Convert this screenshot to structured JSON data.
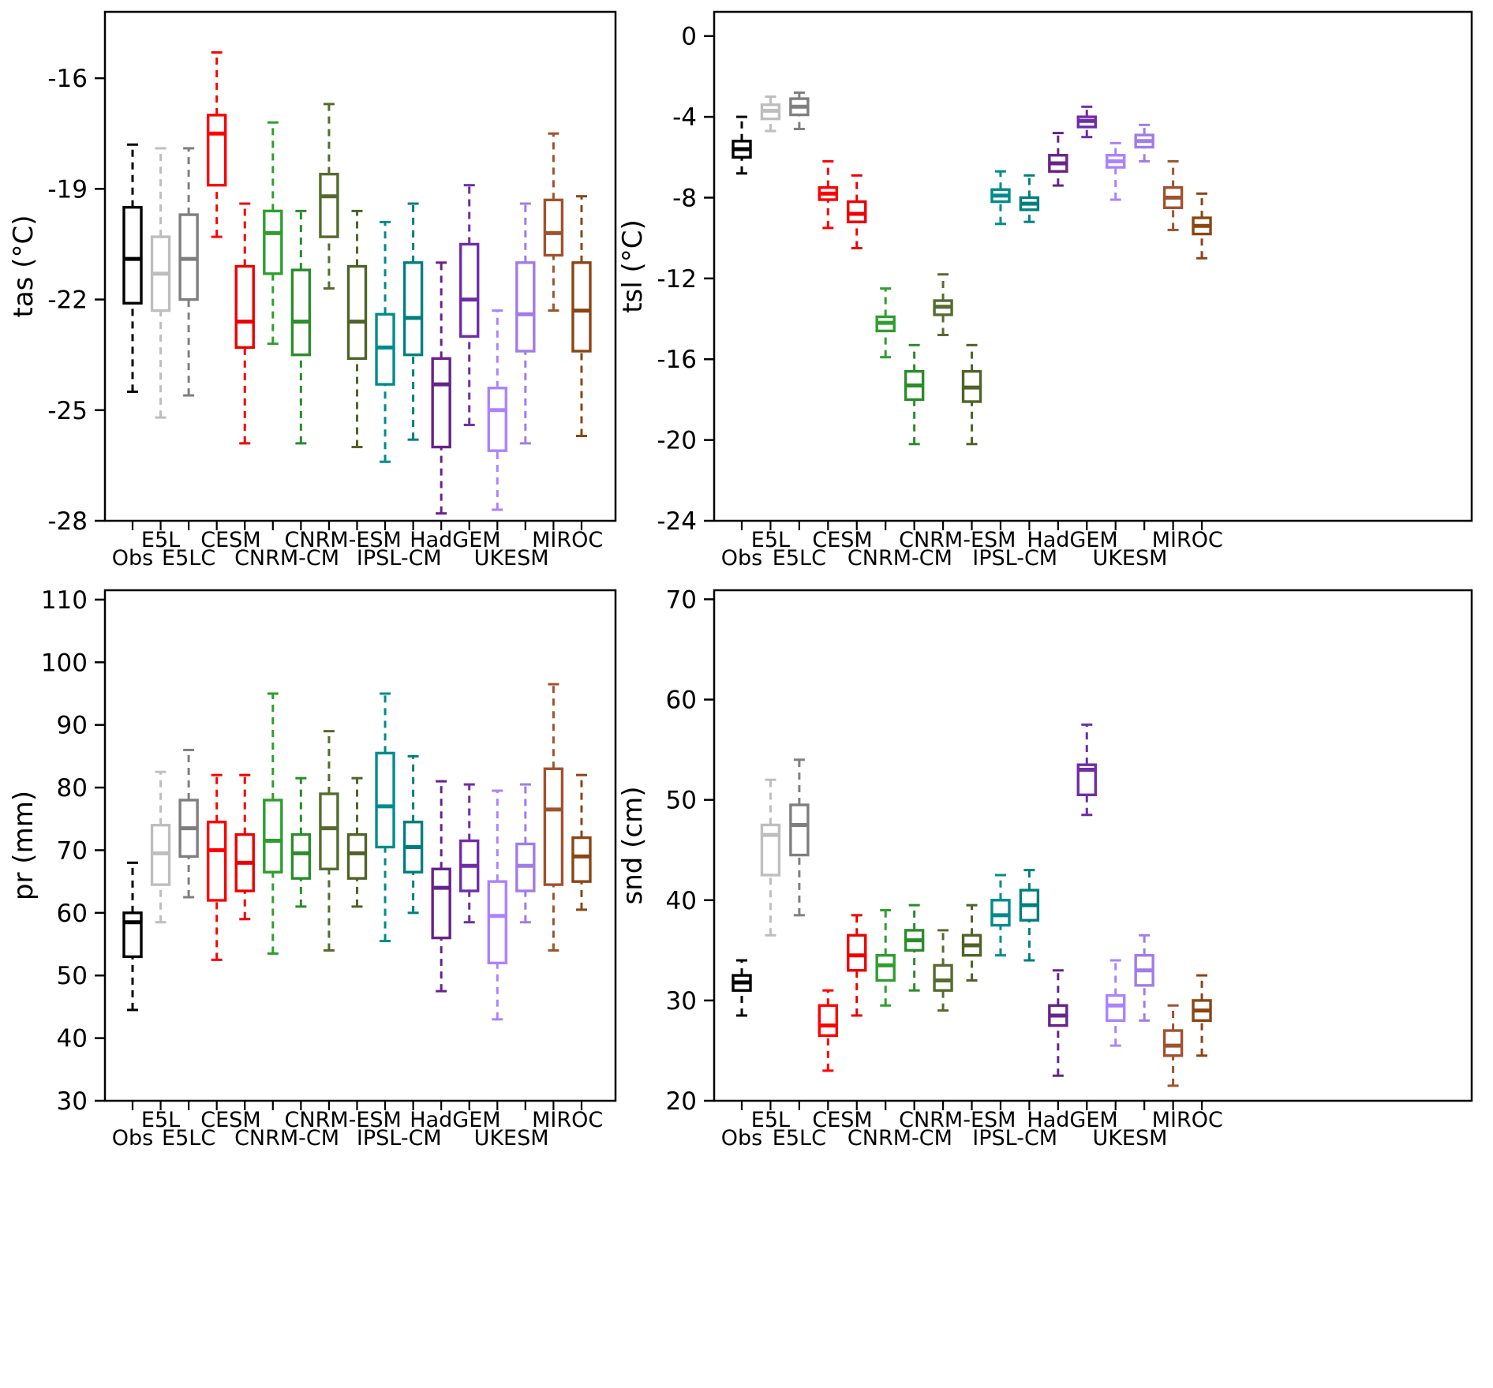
{
  "figure": {
    "description": "Four-panel boxplot comparison of observations and climate models",
    "background": "#ffffff",
    "frame_color": "#000000"
  },
  "chart_data": [
    {
      "type": "box",
      "id": "tas",
      "ylabel": "tas (°C)",
      "yticks": [
        -16,
        -19,
        -22,
        -25,
        -28
      ],
      "ylim": [
        -28,
        -14.2
      ],
      "grid": false,
      "legend": "none",
      "groups": [
        {
          "label": "Obs",
          "first": 0,
          "last": 0,
          "row": "low"
        },
        {
          "label": "E5L",
          "first": 1,
          "last": 1,
          "row": "high"
        },
        {
          "label": "E5LC",
          "first": 2,
          "last": 2,
          "row": "low"
        },
        {
          "label": "CESM",
          "first": 3,
          "last": 4,
          "row": "high"
        },
        {
          "label": "CNRM-CM",
          "first": 5,
          "last": 6,
          "row": "low"
        },
        {
          "label": "CNRM-ESM",
          "first": 7,
          "last": 8,
          "row": "high"
        },
        {
          "label": "IPSL-CM",
          "first": 9,
          "last": 10,
          "row": "low"
        },
        {
          "label": "HadGEM",
          "first": 11,
          "last": 12,
          "row": "high"
        },
        {
          "label": "UKESM",
          "first": 13,
          "last": 14,
          "row": "low"
        },
        {
          "label": "MIROC",
          "first": 15,
          "last": 16,
          "row": "high"
        }
      ],
      "boxes": [
        {
          "group": "Obs",
          "color": "#000000",
          "whislo": -24.5,
          "q1": -22.1,
          "med": -20.9,
          "q3": -19.5,
          "whishi": -17.8
        },
        {
          "group": "E5L",
          "color": "#bebebe",
          "whislo": -25.2,
          "q1": -22.3,
          "med": -21.3,
          "q3": -20.3,
          "whishi": -17.9
        },
        {
          "group": "E5LC",
          "color": "#7f7f7f",
          "whislo": -24.6,
          "q1": -22.0,
          "med": -20.9,
          "q3": -19.7,
          "whishi": -17.9
        },
        {
          "group": "CESM-1",
          "color": "#ff0000",
          "whislo": -20.3,
          "q1": -18.9,
          "med": -17.5,
          "q3": -17.0,
          "whishi": -15.3
        },
        {
          "group": "CESM-2",
          "color": "#ee0000",
          "whislo": -25.9,
          "q1": -23.3,
          "med": -22.6,
          "q3": -21.1,
          "whishi": -19.4
        },
        {
          "group": "CNRM-CM-1",
          "color": "#2e9e2e",
          "whislo": -23.2,
          "q1": -21.3,
          "med": -20.2,
          "q3": -19.6,
          "whishi": -17.2
        },
        {
          "group": "CNRM-CM-2",
          "color": "#2a8c2a",
          "whislo": -25.9,
          "q1": -23.5,
          "med": -22.6,
          "q3": -21.2,
          "whishi": -19.6
        },
        {
          "group": "CNRM-ESM-1",
          "color": "#556b2f",
          "whislo": -21.7,
          "q1": -20.3,
          "med": -19.2,
          "q3": -18.6,
          "whishi": -16.7
        },
        {
          "group": "CNRM-ESM-2",
          "color": "#4f6328",
          "whislo": -26.0,
          "q1": -23.6,
          "med": -22.6,
          "q3": -21.1,
          "whishi": -19.6
        },
        {
          "group": "IPSL-CM-1",
          "color": "#008b8b",
          "whislo": -26.4,
          "q1": -24.3,
          "med": -23.3,
          "q3": -22.4,
          "whishi": -19.9
        },
        {
          "group": "IPSL-CM-2",
          "color": "#007f7f",
          "whislo": -25.8,
          "q1": -23.5,
          "med": -22.5,
          "q3": -21.0,
          "whishi": -19.4
        },
        {
          "group": "HadGEM-1",
          "color": "#68228b",
          "whislo": -27.8,
          "q1": -26.0,
          "med": -24.3,
          "q3": -23.6,
          "whishi": -21.0
        },
        {
          "group": "HadGEM-2",
          "color": "#6f2da8",
          "whislo": -25.4,
          "q1": -23.0,
          "med": -22.0,
          "q3": -20.5,
          "whishi": -18.9
        },
        {
          "group": "UKESM-1",
          "color": "#ab82ff",
          "whislo": -27.7,
          "q1": -26.1,
          "med": -25.0,
          "q3": -24.4,
          "whishi": -22.3
        },
        {
          "group": "UKESM-2",
          "color": "#a07ce8",
          "whislo": -25.9,
          "q1": -23.4,
          "med": -22.4,
          "q3": -21.0,
          "whishi": -19.4
        },
        {
          "group": "MIROC-1",
          "color": "#a0522d",
          "whislo": -22.3,
          "q1": -20.8,
          "med": -20.2,
          "q3": -19.3,
          "whishi": -17.5
        },
        {
          "group": "MIROC-2",
          "color": "#8b4513",
          "whislo": -25.7,
          "q1": -23.4,
          "med": -22.3,
          "q3": -21.0,
          "whishi": -19.2
        }
      ]
    },
    {
      "type": "box",
      "id": "tsl",
      "ylabel": "tsl (°C)",
      "yticks": [
        0,
        -4,
        -8,
        -12,
        -16,
        -20,
        -24
      ],
      "ylim": [
        -24,
        1.2
      ],
      "grid": false,
      "legend": "none",
      "groups": [
        {
          "label": "Obs",
          "first": 0,
          "last": 0,
          "row": "low"
        },
        {
          "label": "E5L",
          "first": 1,
          "last": 1,
          "row": "high"
        },
        {
          "label": "E5LC",
          "first": 2,
          "last": 2,
          "row": "low"
        },
        {
          "label": "CESM",
          "first": 3,
          "last": 4,
          "row": "high"
        },
        {
          "label": "CNRM-CM",
          "first": 5,
          "last": 6,
          "row": "low"
        },
        {
          "label": "CNRM-ESM",
          "first": 7,
          "last": 8,
          "row": "high"
        },
        {
          "label": "IPSL-CM",
          "first": 9,
          "last": 10,
          "row": "low"
        },
        {
          "label": "HadGEM",
          "first": 11,
          "last": 12,
          "row": "high"
        },
        {
          "label": "UKESM",
          "first": 13,
          "last": 14,
          "row": "low"
        },
        {
          "label": "MIROC",
          "first": 15,
          "last": 16,
          "row": "high"
        }
      ],
      "boxes": [
        {
          "group": "Obs",
          "color": "#000000",
          "whislo": -6.8,
          "q1": -6.0,
          "med": -5.6,
          "q3": -5.2,
          "whishi": -4.0
        },
        {
          "group": "E5L",
          "color": "#bebebe",
          "whislo": -4.7,
          "q1": -4.1,
          "med": -3.7,
          "q3": -3.4,
          "whishi": -3.0
        },
        {
          "group": "E5LC",
          "color": "#7f7f7f",
          "whislo": -4.6,
          "q1": -3.9,
          "med": -3.5,
          "q3": -3.1,
          "whishi": -2.8
        },
        {
          "group": "CESM-1",
          "color": "#ff0000",
          "whislo": -9.5,
          "q1": -8.1,
          "med": -7.8,
          "q3": -7.5,
          "whishi": -6.2
        },
        {
          "group": "CESM-2",
          "color": "#ee0000",
          "whislo": -10.5,
          "q1": -9.2,
          "med": -8.8,
          "q3": -8.2,
          "whishi": -6.9
        },
        {
          "group": "CNRM-CM-1",
          "color": "#2e9e2e",
          "whislo": -15.9,
          "q1": -14.6,
          "med": -14.2,
          "q3": -13.9,
          "whishi": -12.5
        },
        {
          "group": "CNRM-CM-2",
          "color": "#2a8c2a",
          "whislo": -20.2,
          "q1": -18.0,
          "med": -17.3,
          "q3": -16.6,
          "whishi": -15.3
        },
        {
          "group": "CNRM-ESM-1",
          "color": "#556b2f",
          "whislo": -14.8,
          "q1": -13.8,
          "med": -13.4,
          "q3": -13.1,
          "whishi": -11.8
        },
        {
          "group": "CNRM-ESM-2",
          "color": "#4f6328",
          "whislo": -20.2,
          "q1": -18.1,
          "med": -17.4,
          "q3": -16.6,
          "whishi": -15.3
        },
        {
          "group": "IPSL-CM-1",
          "color": "#008b8b",
          "whislo": -9.3,
          "q1": -8.2,
          "med": -7.9,
          "q3": -7.6,
          "whishi": -6.7
        },
        {
          "group": "IPSL-CM-2",
          "color": "#007f7f",
          "whislo": -9.2,
          "q1": -8.6,
          "med": -8.3,
          "q3": -8.0,
          "whishi": -6.9
        },
        {
          "group": "HadGEM-1",
          "color": "#68228b",
          "whislo": -7.4,
          "q1": -6.7,
          "med": -6.3,
          "q3": -5.9,
          "whishi": -4.8
        },
        {
          "group": "HadGEM-2",
          "color": "#6f2da8",
          "whislo": -5.0,
          "q1": -4.5,
          "med": -4.2,
          "q3": -4.0,
          "whishi": -3.5
        },
        {
          "group": "UKESM-1",
          "color": "#ab82ff",
          "whislo": -8.1,
          "q1": -6.5,
          "med": -6.2,
          "q3": -5.9,
          "whishi": -5.3
        },
        {
          "group": "UKESM-2",
          "color": "#a07ce8",
          "whislo": -6.2,
          "q1": -5.5,
          "med": -5.2,
          "q3": -4.9,
          "whishi": -4.4
        },
        {
          "group": "MIROC-1",
          "color": "#a0522d",
          "whislo": -9.6,
          "q1": -8.5,
          "med": -8.0,
          "q3": -7.5,
          "whishi": -6.2
        },
        {
          "group": "MIROC-2",
          "color": "#8b4513",
          "whislo": -11.0,
          "q1": -9.8,
          "med": -9.4,
          "q3": -9.0,
          "whishi": -7.8
        }
      ]
    },
    {
      "type": "box",
      "id": "pr",
      "ylabel": "pr (mm)",
      "yticks": [
        110,
        100,
        90,
        80,
        70,
        60,
        50,
        40,
        30
      ],
      "ylim": [
        30,
        111.5
      ],
      "grid": false,
      "legend": "none",
      "groups": [
        {
          "label": "Obs",
          "first": 0,
          "last": 0,
          "row": "low"
        },
        {
          "label": "E5L",
          "first": 1,
          "last": 1,
          "row": "high"
        },
        {
          "label": "E5LC",
          "first": 2,
          "last": 2,
          "row": "low"
        },
        {
          "label": "CESM",
          "first": 3,
          "last": 4,
          "row": "high"
        },
        {
          "label": "CNRM-CM",
          "first": 5,
          "last": 6,
          "row": "low"
        },
        {
          "label": "CNRM-ESM",
          "first": 7,
          "last": 8,
          "row": "high"
        },
        {
          "label": "IPSL-CM",
          "first": 9,
          "last": 10,
          "row": "low"
        },
        {
          "label": "HadGEM",
          "first": 11,
          "last": 12,
          "row": "high"
        },
        {
          "label": "UKESM",
          "first": 13,
          "last": 14,
          "row": "low"
        },
        {
          "label": "MIROC",
          "first": 15,
          "last": 16,
          "row": "high"
        }
      ],
      "boxes": [
        {
          "group": "Obs",
          "color": "#000000",
          "whislo": 44.5,
          "q1": 53.0,
          "med": 58.5,
          "q3": 60.0,
          "whishi": 68.0
        },
        {
          "group": "E5L",
          "color": "#bebebe",
          "whislo": 58.5,
          "q1": 64.5,
          "med": 69.5,
          "q3": 74.0,
          "whishi": 82.5
        },
        {
          "group": "E5LC",
          "color": "#7f7f7f",
          "whislo": 62.5,
          "q1": 69.0,
          "med": 73.5,
          "q3": 78.0,
          "whishi": 86.0
        },
        {
          "group": "CESM-1",
          "color": "#ff0000",
          "whislo": 52.5,
          "q1": 62.0,
          "med": 70.0,
          "q3": 74.5,
          "whishi": 82.0
        },
        {
          "group": "CESM-2",
          "color": "#ee0000",
          "whislo": 59.0,
          "q1": 63.5,
          "med": 68.0,
          "q3": 72.5,
          "whishi": 82.0
        },
        {
          "group": "CNRM-CM-1",
          "color": "#2e9e2e",
          "whislo": 53.5,
          "q1": 66.5,
          "med": 71.5,
          "q3": 78.0,
          "whishi": 95.0
        },
        {
          "group": "CNRM-CM-2",
          "color": "#2a8c2a",
          "whislo": 61.0,
          "q1": 65.5,
          "med": 69.5,
          "q3": 72.5,
          "whishi": 81.5
        },
        {
          "group": "CNRM-ESM-1",
          "color": "#556b2f",
          "whislo": 54.0,
          "q1": 67.0,
          "med": 73.5,
          "q3": 79.0,
          "whishi": 89.0
        },
        {
          "group": "CNRM-ESM-2",
          "color": "#4f6328",
          "whislo": 61.0,
          "q1": 65.5,
          "med": 69.5,
          "q3": 72.5,
          "whishi": 81.5
        },
        {
          "group": "IPSL-CM-1",
          "color": "#008b8b",
          "whislo": 55.5,
          "q1": 70.5,
          "med": 77.0,
          "q3": 85.5,
          "whishi": 95.0
        },
        {
          "group": "IPSL-CM-2",
          "color": "#007f7f",
          "whislo": 60.0,
          "q1": 66.5,
          "med": 70.5,
          "q3": 74.5,
          "whishi": 85.0
        },
        {
          "group": "HadGEM-1",
          "color": "#68228b",
          "whislo": 47.5,
          "q1": 56.0,
          "med": 64.0,
          "q3": 67.0,
          "whishi": 81.0
        },
        {
          "group": "HadGEM-2",
          "color": "#6f2da8",
          "whislo": 58.5,
          "q1": 63.5,
          "med": 67.5,
          "q3": 71.5,
          "whishi": 80.5
        },
        {
          "group": "UKESM-1",
          "color": "#ab82ff",
          "whislo": 43.0,
          "q1": 52.0,
          "med": 59.5,
          "q3": 65.0,
          "whishi": 79.5
        },
        {
          "group": "UKESM-2",
          "color": "#a07ce8",
          "whislo": 58.5,
          "q1": 63.5,
          "med": 67.5,
          "q3": 71.0,
          "whishi": 80.5
        },
        {
          "group": "MIROC-1",
          "color": "#a0522d",
          "whislo": 54.0,
          "q1": 64.5,
          "med": 76.5,
          "q3": 83.0,
          "whishi": 96.5
        },
        {
          "group": "MIROC-2",
          "color": "#8b4513",
          "whislo": 60.5,
          "q1": 65.0,
          "med": 69.0,
          "q3": 72.0,
          "whishi": 82.0
        }
      ]
    },
    {
      "type": "box",
      "id": "snd",
      "ylabel": "snd (cm)",
      "yticks": [
        70,
        60,
        50,
        40,
        30,
        20
      ],
      "ylim": [
        20,
        70.9
      ],
      "grid": false,
      "legend": "none",
      "groups": [
        {
          "label": "Obs",
          "first": 0,
          "last": 0,
          "row": "low"
        },
        {
          "label": "E5L",
          "first": 1,
          "last": 1,
          "row": "high"
        },
        {
          "label": "E5LC",
          "first": 2,
          "last": 2,
          "row": "low"
        },
        {
          "label": "CESM",
          "first": 3,
          "last": 4,
          "row": "high"
        },
        {
          "label": "CNRM-CM",
          "first": 5,
          "last": 6,
          "row": "low"
        },
        {
          "label": "CNRM-ESM",
          "first": 7,
          "last": 8,
          "row": "high"
        },
        {
          "label": "IPSL-CM",
          "first": 9,
          "last": 10,
          "row": "low"
        },
        {
          "label": "HadGEM",
          "first": 11,
          "last": 12,
          "row": "high"
        },
        {
          "label": "UKESM",
          "first": 13,
          "last": 14,
          "row": "low"
        },
        {
          "label": "MIROC",
          "first": 15,
          "last": 16,
          "row": "high"
        }
      ],
      "boxes": [
        {
          "group": "Obs",
          "color": "#000000",
          "whislo": 28.5,
          "q1": 31.0,
          "med": 31.8,
          "q3": 32.5,
          "whishi": 34.0
        },
        {
          "group": "E5L",
          "color": "#bebebe",
          "whislo": 36.5,
          "q1": 42.5,
          "med": 46.5,
          "q3": 47.5,
          "whishi": 52.0
        },
        {
          "group": "E5LC",
          "color": "#7f7f7f",
          "whislo": 38.5,
          "q1": 44.5,
          "med": 47.5,
          "q3": 49.5,
          "whishi": 54.0
        },
        {
          "group": "CESM-1",
          "color": "#ff0000",
          "whislo": 23.0,
          "q1": 26.5,
          "med": 27.5,
          "q3": 29.5,
          "whishi": 31.0
        },
        {
          "group": "CESM-2",
          "color": "#ee0000",
          "whislo": 28.5,
          "q1": 33.0,
          "med": 34.5,
          "q3": 36.5,
          "whishi": 38.5
        },
        {
          "group": "CNRM-CM-1",
          "color": "#2e9e2e",
          "whislo": 29.5,
          "q1": 32.0,
          "med": 33.5,
          "q3": 34.5,
          "whishi": 39.0
        },
        {
          "group": "CNRM-CM-2",
          "color": "#2a8c2a",
          "whislo": 31.0,
          "q1": 35.0,
          "med": 36.0,
          "q3": 37.0,
          "whishi": 39.5
        },
        {
          "group": "CNRM-ESM-1",
          "color": "#556b2f",
          "whislo": 29.0,
          "q1": 31.0,
          "med": 32.0,
          "q3": 33.5,
          "whishi": 37.0
        },
        {
          "group": "CNRM-ESM-2",
          "color": "#4f6328",
          "whislo": 32.0,
          "q1": 34.5,
          "med": 35.5,
          "q3": 36.5,
          "whishi": 39.5
        },
        {
          "group": "IPSL-CM-1",
          "color": "#008b8b",
          "whislo": 34.5,
          "q1": 37.5,
          "med": 38.5,
          "q3": 40.0,
          "whishi": 42.5
        },
        {
          "group": "IPSL-CM-2",
          "color": "#007f7f",
          "whislo": 34.0,
          "q1": 38.0,
          "med": 39.5,
          "q3": 41.0,
          "whishi": 43.0
        },
        {
          "group": "HadGEM-1",
          "color": "#68228b",
          "whislo": 22.5,
          "q1": 27.5,
          "med": 28.5,
          "q3": 29.5,
          "whishi": 33.0
        },
        {
          "group": "HadGEM-2",
          "color": "#6f2da8",
          "whislo": 48.5,
          "q1": 50.5,
          "med": 53.0,
          "q3": 53.5,
          "whishi": 57.5
        },
        {
          "group": "UKESM-1",
          "color": "#ab82ff",
          "whislo": 25.5,
          "q1": 28.0,
          "med": 29.5,
          "q3": 30.5,
          "whishi": 34.0
        },
        {
          "group": "UKESM-2",
          "color": "#a07ce8",
          "whislo": 28.0,
          "q1": 31.5,
          "med": 33.0,
          "q3": 34.5,
          "whishi": 36.5
        },
        {
          "group": "MIROC-1",
          "color": "#a0522d",
          "whislo": 21.5,
          "q1": 24.5,
          "med": 25.5,
          "q3": 27.0,
          "whishi": 29.5
        },
        {
          "group": "MIROC-2",
          "color": "#8b4513",
          "whislo": 24.5,
          "q1": 28.0,
          "med": 29.0,
          "q3": 30.0,
          "whishi": 32.5
        }
      ]
    }
  ]
}
